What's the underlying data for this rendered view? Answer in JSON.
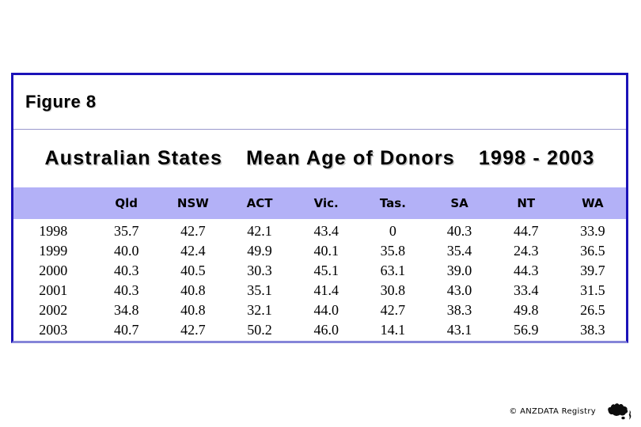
{
  "slide": {
    "figure_label": "Figure 8",
    "title_parts": {
      "part1": "Australian States",
      "part2": "Mean Age of Donors",
      "part3": "1998 - 2003"
    }
  },
  "table": {
    "column_headers": [
      "",
      "Qld",
      "NSW",
      "ACT",
      "Vic.",
      "Tas.",
      "SA",
      "NT",
      "WA"
    ],
    "rows": [
      {
        "year": "1998",
        "values": [
          "35.7",
          "42.7",
          "42.1",
          "43.4",
          "0",
          "40.3",
          "44.7",
          "33.9"
        ]
      },
      {
        "year": "1999",
        "values": [
          "40.0",
          "42.4",
          "49.9",
          "40.1",
          "35.8",
          "35.4",
          "24.3",
          "36.5"
        ]
      },
      {
        "year": "2000",
        "values": [
          "40.3",
          "40.5",
          "30.3",
          "45.1",
          "63.1",
          "39.0",
          "44.3",
          "39.7"
        ]
      },
      {
        "year": "2001",
        "values": [
          "40.3",
          "40.8",
          "35.1",
          "41.4",
          "30.8",
          "43.0",
          "33.4",
          "31.5"
        ]
      },
      {
        "year": "2002",
        "values": [
          "34.8",
          "40.8",
          "32.1",
          "44.0",
          "42.7",
          "38.3",
          "49.8",
          "26.5"
        ]
      },
      {
        "year": "2003",
        "values": [
          "40.7",
          "42.7",
          "50.2",
          "46.0",
          "14.1",
          "43.1",
          "56.9",
          "38.3"
        ]
      }
    ]
  },
  "footer": {
    "credit": "© ANZDATA Registry",
    "logo_icon": "australia-new-zealand-map-icon"
  },
  "colors": {
    "box_border": "#1b12b8",
    "box_border_bottom": "#8585d8",
    "header_band": "#b3b1f7",
    "divider": "#9a99cc",
    "background": "#ffffff",
    "text": "#000000"
  },
  "chart_data": {
    "type": "table",
    "title": "Australian States  Mean Age of Donors  1998 - 2003",
    "categories": [
      "Qld",
      "NSW",
      "ACT",
      "Vic.",
      "Tas.",
      "SA",
      "NT",
      "WA"
    ],
    "x": [
      1998,
      1999,
      2000,
      2001,
      2002,
      2003
    ],
    "series": [
      {
        "name": "Qld",
        "values": [
          35.7,
          40.0,
          40.3,
          40.3,
          34.8,
          40.7
        ]
      },
      {
        "name": "NSW",
        "values": [
          42.7,
          42.4,
          40.5,
          40.8,
          40.8,
          42.7
        ]
      },
      {
        "name": "ACT",
        "values": [
          42.1,
          49.9,
          30.3,
          35.1,
          32.1,
          50.2
        ]
      },
      {
        "name": "Vic.",
        "values": [
          43.4,
          40.1,
          45.1,
          41.4,
          44.0,
          46.0
        ]
      },
      {
        "name": "Tas.",
        "values": [
          0,
          35.8,
          63.1,
          30.8,
          42.7,
          14.1
        ]
      },
      {
        "name": "SA",
        "values": [
          40.3,
          35.4,
          39.0,
          43.0,
          38.3,
          43.1
        ]
      },
      {
        "name": "NT",
        "values": [
          44.7,
          24.3,
          44.3,
          33.4,
          49.8,
          56.9
        ]
      },
      {
        "name": "WA",
        "values": [
          33.9,
          36.5,
          39.7,
          31.5,
          26.5,
          38.3
        ]
      }
    ],
    "legend_position": "none",
    "grid": false
  }
}
